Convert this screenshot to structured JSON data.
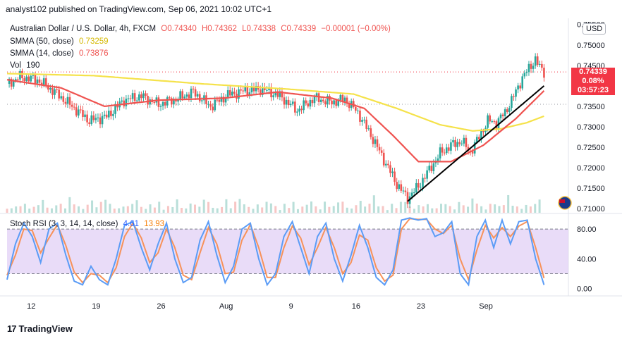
{
  "header": {
    "publisher": "analyst102 published on TradingView.com, Sep 06, 2021 10:02 UTC+1"
  },
  "legend": {
    "symbol": "Australian Dollar / U.S. Dollar, 4h, FXCM",
    "open": "O0.74340",
    "high": "H0.74362",
    "low": "L0.74338",
    "close": "C0.74339",
    "change": "−0.00001 (−0.00%)",
    "smma50_label": "SMMA (50, close)",
    "smma50_value": "0.73259",
    "smma14_label": "SMMA (14, close)",
    "smma14_value": "0.73876",
    "vol_label": "Vol",
    "vol_value": "190",
    "rsi_label": "Stoch RSI (3, 3, 14, 14, close)",
    "rsi_k": "4.61",
    "rsi_d": "13.93"
  },
  "price_tag": {
    "price": "0.74339",
    "pct": "0.08%",
    "countdown": "03:57:23"
  },
  "currency_button": "USD",
  "footer": {
    "brand": "TradingView",
    "logo": "17"
  },
  "colors": {
    "up": "#26a69a",
    "down": "#ef5350",
    "smma50": "#f5e24a",
    "smma14": "#ef5350",
    "rsi_k": "#5b9cf6",
    "rsi_d": "#f7925a",
    "rsi_band": "#e1d0f5",
    "trendline": "#000000"
  },
  "chart_data": [
    {
      "type": "line",
      "title": "Australian Dollar / U.S. Dollar, 4h, FXCM",
      "y_ticks": [
        "0.75500",
        "0.75000",
        "0.74500",
        "0.74000",
        "0.73500",
        "0.73000",
        "0.72500",
        "0.72000",
        "0.71500",
        "0.71000"
      ],
      "y_tick_values": [
        0.755,
        0.75,
        0.745,
        0.74,
        0.735,
        0.73,
        0.725,
        0.72,
        0.715,
        0.71
      ],
      "ylim": [
        0.709,
        0.7565
      ],
      "x_ticks": [
        "12",
        "19",
        "26",
        "Aug",
        "9",
        "16",
        "23",
        "Sep"
      ],
      "x_tick_index": [
        4,
        34,
        64,
        94,
        124,
        154,
        184,
        214
      ],
      "n_candles": 238,
      "close_series": [
        [
          0,
          0.7405
        ],
        [
          6,
          0.7422
        ],
        [
          14,
          0.7415
        ],
        [
          22,
          0.7385
        ],
        [
          30,
          0.735
        ],
        [
          38,
          0.7315
        ],
        [
          46,
          0.7325
        ],
        [
          54,
          0.7365
        ],
        [
          62,
          0.7375
        ],
        [
          70,
          0.7355
        ],
        [
          78,
          0.7368
        ],
        [
          86,
          0.7385
        ],
        [
          94,
          0.735
        ],
        [
          102,
          0.7378
        ],
        [
          110,
          0.7388
        ],
        [
          118,
          0.7392
        ],
        [
          126,
          0.7375
        ],
        [
          134,
          0.734
        ],
        [
          142,
          0.737
        ],
        [
          150,
          0.736
        ],
        [
          156,
          0.7368
        ],
        [
          162,
          0.7335
        ],
        [
          168,
          0.728
        ],
        [
          172,
          0.724
        ],
        [
          176,
          0.72
        ],
        [
          180,
          0.716
        ],
        [
          185,
          0.7125
        ],
        [
          190,
          0.7155
        ],
        [
          195,
          0.7195
        ],
        [
          200,
          0.7235
        ],
        [
          205,
          0.7255
        ],
        [
          210,
          0.7265
        ],
        [
          214,
          0.7238
        ],
        [
          218,
          0.7275
        ],
        [
          222,
          0.7315
        ],
        [
          226,
          0.731
        ],
        [
          230,
          0.7335
        ],
        [
          234,
          0.7375
        ],
        [
          238,
          0.742
        ],
        [
          242,
          0.745
        ],
        [
          244,
          0.7465
        ],
        [
          246,
          0.7445
        ],
        [
          248,
          0.7434
        ]
      ],
      "smma50": [
        [
          0,
          0.743
        ],
        [
          40,
          0.7425
        ],
        [
          90,
          0.7405
        ],
        [
          130,
          0.7392
        ],
        [
          160,
          0.738
        ],
        [
          180,
          0.7345
        ],
        [
          200,
          0.7305
        ],
        [
          215,
          0.729
        ],
        [
          228,
          0.7295
        ],
        [
          240,
          0.731
        ],
        [
          248,
          0.7326
        ]
      ],
      "smma14": [
        [
          0,
          0.7415
        ],
        [
          25,
          0.7395
        ],
        [
          45,
          0.735
        ],
        [
          70,
          0.7365
        ],
        [
          100,
          0.737
        ],
        [
          125,
          0.7385
        ],
        [
          150,
          0.737
        ],
        [
          165,
          0.7345
        ],
        [
          178,
          0.728
        ],
        [
          190,
          0.7215
        ],
        [
          205,
          0.7215
        ],
        [
          220,
          0.7255
        ],
        [
          235,
          0.732
        ],
        [
          248,
          0.7388
        ]
      ],
      "trendline": [
        [
          185,
          0.7118
        ],
        [
          248,
          0.74
        ]
      ],
      "last_price": 0.74339,
      "dotted_levels": [
        0.74339,
        0.7355
      ]
    },
    {
      "type": "bar",
      "title": "Vol",
      "values_note": "volume histogram along bottom of price pane",
      "values": [
        3,
        2,
        4,
        3,
        5,
        2,
        3,
        4,
        6,
        3,
        2,
        5,
        4,
        3,
        7,
        5,
        3,
        2,
        4,
        6,
        3,
        5,
        8,
        4,
        3,
        2,
        4,
        3,
        5,
        6
      ]
    },
    {
      "type": "line",
      "title": "Stoch RSI (3, 3, 14, 14, close)",
      "y_ticks": [
        "80.00",
        "40.00",
        "0.00"
      ],
      "y_tick_values": [
        80,
        40,
        0
      ],
      "ylim": [
        -8,
        100
      ],
      "band": [
        20,
        80
      ],
      "k_series": [
        [
          0,
          12
        ],
        [
          4,
          60
        ],
        [
          8,
          88
        ],
        [
          12,
          70
        ],
        [
          16,
          35
        ],
        [
          20,
          80
        ],
        [
          24,
          88
        ],
        [
          28,
          45
        ],
        [
          32,
          10
        ],
        [
          36,
          5
        ],
        [
          40,
          30
        ],
        [
          44,
          12
        ],
        [
          48,
          5
        ],
        [
          52,
          40
        ],
        [
          56,
          85
        ],
        [
          60,
          90
        ],
        [
          64,
          55
        ],
        [
          68,
          25
        ],
        [
          72,
          60
        ],
        [
          76,
          88
        ],
        [
          80,
          40
        ],
        [
          84,
          8
        ],
        [
          88,
          15
        ],
        [
          92,
          65
        ],
        [
          96,
          90
        ],
        [
          100,
          45
        ],
        [
          104,
          8
        ],
        [
          108,
          30
        ],
        [
          112,
          80
        ],
        [
          116,
          88
        ],
        [
          120,
          40
        ],
        [
          124,
          5
        ],
        [
          128,
          20
        ],
        [
          132,
          70
        ],
        [
          136,
          90
        ],
        [
          140,
          55
        ],
        [
          144,
          20
        ],
        [
          148,
          70
        ],
        [
          152,
          88
        ],
        [
          156,
          40
        ],
        [
          160,
          10
        ],
        [
          164,
          45
        ],
        [
          168,
          85
        ],
        [
          172,
          55
        ],
        [
          176,
          15
        ],
        [
          180,
          5
        ],
        [
          184,
          25
        ],
        [
          188,
          92
        ],
        [
          192,
          95
        ],
        [
          196,
          92
        ],
        [
          200,
          94
        ],
        [
          204,
          70
        ],
        [
          208,
          75
        ],
        [
          212,
          90
        ],
        [
          216,
          20
        ],
        [
          220,
          5
        ],
        [
          224,
          70
        ],
        [
          228,
          92
        ],
        [
          232,
          55
        ],
        [
          236,
          92
        ],
        [
          240,
          60
        ],
        [
          244,
          90
        ],
        [
          248,
          92
        ],
        [
          252,
          40
        ],
        [
          256,
          5
        ]
      ],
      "d_series": [
        [
          0,
          18
        ],
        [
          4,
          45
        ],
        [
          8,
          80
        ],
        [
          12,
          78
        ],
        [
          16,
          48
        ],
        [
          20,
          68
        ],
        [
          24,
          86
        ],
        [
          28,
          58
        ],
        [
          32,
          22
        ],
        [
          36,
          8
        ],
        [
          40,
          20
        ],
        [
          44,
          18
        ],
        [
          48,
          8
        ],
        [
          52,
          28
        ],
        [
          56,
          70
        ],
        [
          60,
          88
        ],
        [
          64,
          68
        ],
        [
          68,
          35
        ],
        [
          72,
          48
        ],
        [
          76,
          80
        ],
        [
          80,
          55
        ],
        [
          84,
          18
        ],
        [
          88,
          12
        ],
        [
          92,
          48
        ],
        [
          96,
          82
        ],
        [
          100,
          60
        ],
        [
          104,
          20
        ],
        [
          108,
          22
        ],
        [
          112,
          65
        ],
        [
          116,
          86
        ],
        [
          120,
          55
        ],
        [
          124,
          15
        ],
        [
          128,
          15
        ],
        [
          132,
          55
        ],
        [
          136,
          84
        ],
        [
          140,
          68
        ],
        [
          144,
          32
        ],
        [
          148,
          55
        ],
        [
          152,
          82
        ],
        [
          156,
          55
        ],
        [
          160,
          20
        ],
        [
          164,
          35
        ],
        [
          168,
          72
        ],
        [
          172,
          65
        ],
        [
          176,
          28
        ],
        [
          180,
          10
        ],
        [
          184,
          18
        ],
        [
          188,
          80
        ],
        [
          192,
          94
        ],
        [
          196,
          93
        ],
        [
          200,
          93
        ],
        [
          204,
          80
        ],
        [
          208,
          74
        ],
        [
          212,
          85
        ],
        [
          216,
          40
        ],
        [
          220,
          12
        ],
        [
          224,
          52
        ],
        [
          228,
          85
        ],
        [
          232,
          68
        ],
        [
          236,
          82
        ],
        [
          240,
          70
        ],
        [
          244,
          84
        ],
        [
          248,
          90
        ],
        [
          252,
          55
        ],
        [
          256,
          14
        ]
      ]
    }
  ]
}
